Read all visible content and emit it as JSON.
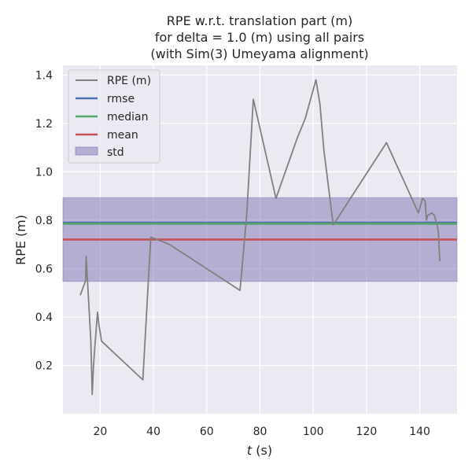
{
  "chart_data": {
    "type": "line",
    "title_lines": [
      "RPE w.r.t. translation part (m)",
      "for delta = 1.0 (m) using all pairs",
      "(with Sim(3) Umeyama alignment)"
    ],
    "xlabel_italic": "t",
    "xlabel_unit": " (s)",
    "ylabel": "RPE (m)",
    "xlim": [
      6,
      154
    ],
    "ylim": [
      0.0,
      1.44
    ],
    "xticks": [
      20,
      40,
      60,
      80,
      100,
      120,
      140
    ],
    "yticks": [
      0.2,
      0.4,
      0.6,
      0.8,
      1.0,
      1.2,
      1.4
    ],
    "grid": true,
    "legend_position": "top-left",
    "legend": [
      "RPE (m)",
      "rmse",
      "median",
      "mean",
      "std"
    ],
    "series": [
      {
        "name": "RPE (m)",
        "color": "#808080",
        "x": [
          12.5,
          14.5,
          14.7,
          16.5,
          17.0,
          17.5,
          18.0,
          19.0,
          19.5,
          20.5,
          36.0,
          36.3,
          39.0,
          46.0,
          72.5,
          75.0,
          77.5,
          86.0,
          94.0,
          97.0,
          101.0,
          102.5,
          104.0,
          107.5,
          127.5,
          139.5,
          141.0,
          142.0,
          142.5,
          143.0,
          144.5,
          145.5,
          146.5,
          147.0,
          147.5
        ],
        "y": [
          0.49,
          0.55,
          0.65,
          0.3,
          0.08,
          0.2,
          0.28,
          0.42,
          0.37,
          0.3,
          0.14,
          0.2,
          0.73,
          0.7,
          0.51,
          0.82,
          1.3,
          0.89,
          1.14,
          1.22,
          1.38,
          1.28,
          1.09,
          0.78,
          1.12,
          0.83,
          0.89,
          0.88,
          0.8,
          0.82,
          0.83,
          0.82,
          0.78,
          0.75,
          0.63
        ]
      }
    ],
    "stats": {
      "rmse": {
        "value": 0.79,
        "color": "#4c72b0"
      },
      "median": {
        "value": 0.785,
        "color": "#55a868"
      },
      "mean": {
        "value": 0.72,
        "color": "#c44e52"
      },
      "std": {
        "low": 0.547,
        "high": 0.893,
        "color": "#8172b2"
      }
    }
  }
}
